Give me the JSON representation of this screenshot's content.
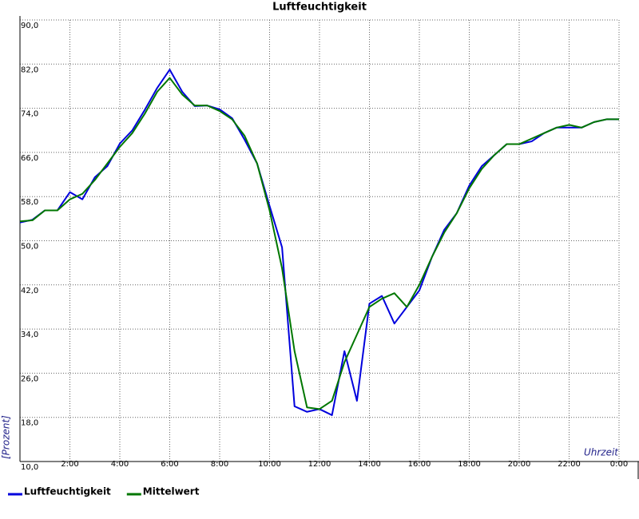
{
  "chart_data": {
    "type": "line",
    "title": "Luftfeuchtigkeit",
    "xlabel": "Uhrzeit",
    "ylabel": "[Prozent]",
    "x": [
      0,
      0.5,
      1,
      1.5,
      2,
      2.5,
      3,
      3.5,
      4,
      4.5,
      5,
      5.5,
      6,
      6.5,
      7,
      7.5,
      8,
      8.5,
      9,
      9.5,
      10,
      10.5,
      11,
      11.5,
      12,
      12.5,
      13,
      13.5,
      14,
      14.5,
      15,
      15.5,
      16,
      16.5,
      17,
      17.5,
      18,
      18.5,
      19,
      19.5,
      20,
      20.5,
      21,
      21.5,
      22,
      22.5,
      23,
      23.5,
      24
    ],
    "series": [
      {
        "name": "Luftfeuchtigkeit",
        "color": "#0000dd",
        "values": [
          53.3,
          53.8,
          55.5,
          55.5,
          58.8,
          57.5,
          61.5,
          63.5,
          67.6,
          70,
          73.7,
          77.7,
          81,
          77,
          74.4,
          74.5,
          73.8,
          72.2,
          68.3,
          64,
          56.3,
          48.8,
          20,
          19,
          19.5,
          18.4,
          30,
          21,
          38.6,
          40,
          35,
          38,
          41,
          47,
          52,
          55,
          60,
          63.5,
          65.5,
          67.5,
          67.5,
          68,
          69.5,
          70.5,
          70.5,
          70.5,
          71.5,
          72,
          72
        ]
      },
      {
        "name": "Mittelwert",
        "color": "#007700",
        "values": [
          53.5,
          53.7,
          55.5,
          55.5,
          57.5,
          58.5,
          61,
          64,
          67,
          69.5,
          73,
          77,
          79.5,
          76.5,
          74.5,
          74.5,
          73.5,
          72,
          69,
          64,
          55.5,
          45,
          30,
          19.8,
          19.5,
          21,
          28,
          33,
          38,
          39.5,
          40.5,
          38,
          42,
          47,
          51.5,
          55,
          59.5,
          63,
          65.5,
          67.5,
          67.5,
          68.5,
          69.5,
          70.5,
          71,
          70.5,
          71.5,
          72,
          72
        ]
      }
    ],
    "xlim": [
      0,
      24
    ],
    "xticks": [
      {
        "value": 2,
        "label": "2:00"
      },
      {
        "value": 4,
        "label": "4:00"
      },
      {
        "value": 6,
        "label": "6:00"
      },
      {
        "value": 8,
        "label": "8:00"
      },
      {
        "value": 10,
        "label": "10:00"
      },
      {
        "value": 12,
        "label": "12:00"
      },
      {
        "value": 14,
        "label": "14:00"
      },
      {
        "value": 16,
        "label": "16:00"
      },
      {
        "value": 18,
        "label": "18:00"
      },
      {
        "value": 20,
        "label": "20:00"
      },
      {
        "value": 22,
        "label": "22:00"
      },
      {
        "value": 24,
        "label": "0:00"
      }
    ],
    "ylim": [
      10,
      90
    ],
    "yticks": [
      {
        "value": 10,
        "label": "10,0"
      },
      {
        "value": 18,
        "label": "18,0"
      },
      {
        "value": 26,
        "label": "26,0"
      },
      {
        "value": 34,
        "label": "34,0"
      },
      {
        "value": 42,
        "label": "42,0"
      },
      {
        "value": 50,
        "label": "50,0"
      },
      {
        "value": 58,
        "label": "58,0"
      },
      {
        "value": 66,
        "label": "66,0"
      },
      {
        "value": 74,
        "label": "74,0"
      },
      {
        "value": 82,
        "label": "82,0"
      },
      {
        "value": 90,
        "label": "90,0"
      }
    ],
    "grid": true
  }
}
